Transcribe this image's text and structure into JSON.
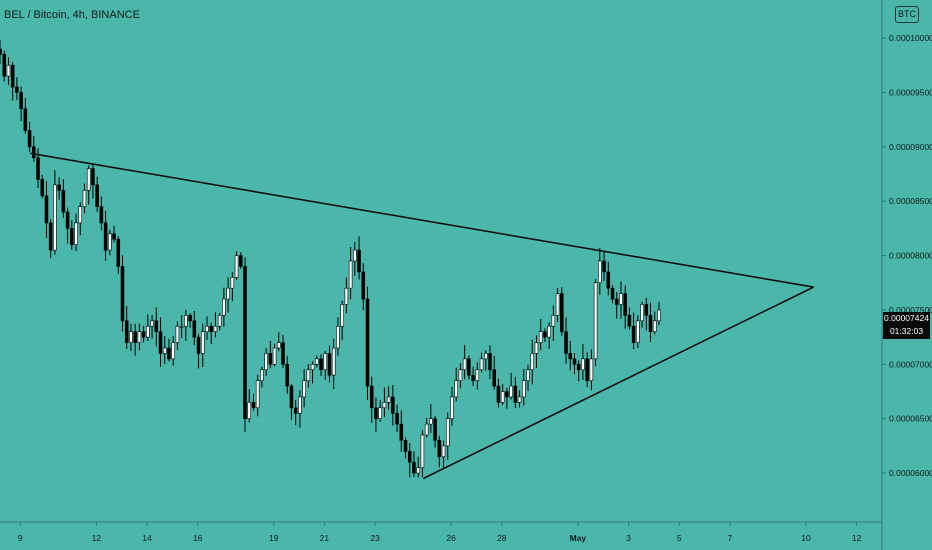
{
  "header": {
    "title": "BEL / Bitcoin, 4h, BINANCE"
  },
  "currency_button": {
    "label": "BTC"
  },
  "price_tag": {
    "value": "0.00007424",
    "countdown": "01:32:03"
  },
  "colors": {
    "background": "#4bb7aa",
    "candle_up": "#ffffff",
    "candle_down": "#000000",
    "trendline": "#111111",
    "axis_text": "#0f1b1a"
  },
  "chart_data": {
    "type": "candlestick",
    "title": "BEL / Bitcoin, 4h, BINANCE",
    "interval": "4h",
    "y_ticks": [
      "0.00010000",
      "0.00009500",
      "0.00009000",
      "0.00008500",
      "0.00008000",
      "0.00007500",
      "0.00007000",
      "0.00006500",
      "0.00006000"
    ],
    "ylim": [
      5.55e-05,
      0.0001035
    ],
    "x_ticks": [
      "9",
      "12",
      "14",
      "16",
      "19",
      "21",
      "23",
      "26",
      "28",
      "May",
      "3",
      "5",
      "7",
      "10",
      "12"
    ],
    "x_tick_days": [
      9,
      12,
      14,
      16,
      19,
      21,
      23,
      26,
      28,
      31,
      33,
      35,
      37,
      40,
      42
    ],
    "xlim": [
      8.2,
      43
    ],
    "x_start_day": 8.2,
    "bars_per_day": 6,
    "closes": [
      9.85,
      9.65,
      9.75,
      9.55,
      9.5,
      9.35,
      9.15,
      9.0,
      8.9,
      8.7,
      8.55,
      8.3,
      8.05,
      8.65,
      8.6,
      8.4,
      8.25,
      8.1,
      8.3,
      8.45,
      8.6,
      8.8,
      8.65,
      8.45,
      8.3,
      8.05,
      8.2,
      8.15,
      7.9,
      7.4,
      7.2,
      7.3,
      7.2,
      7.3,
      7.25,
      7.35,
      7.4,
      7.3,
      7.1,
      7.15,
      7.05,
      7.2,
      7.35,
      7.35,
      7.45,
      7.4,
      7.25,
      7.1,
      7.3,
      7.35,
      7.3,
      7.35,
      7.45,
      7.6,
      7.7,
      7.8,
      8.0,
      7.9,
      6.5,
      6.65,
      6.6,
      6.85,
      6.95,
      7.1,
      7.0,
      7.15,
      7.2,
      7.0,
      6.8,
      6.6,
      6.55,
      6.7,
      6.85,
      6.95,
      7.0,
      7.05,
      6.95,
      7.1,
      6.9,
      7.15,
      7.35,
      7.55,
      7.7,
      7.95,
      8.05,
      7.85,
      7.6,
      6.8,
      6.6,
      6.5,
      6.6,
      6.65,
      6.7,
      6.55,
      6.45,
      6.3,
      6.2,
      6.1,
      6.0,
      6.05,
      6.35,
      6.45,
      6.5,
      6.3,
      6.15,
      6.25,
      6.5,
      6.7,
      6.85,
      6.95,
      7.05,
      6.9,
      6.85,
      6.95,
      7.05,
      7.1,
      6.95,
      6.8,
      6.65,
      6.75,
      6.7,
      6.8,
      6.65,
      6.7,
      6.85,
      6.95,
      7.1,
      7.2,
      7.3,
      7.25,
      7.35,
      7.45,
      7.65,
      7.3,
      7.1,
      7.05,
      7.0,
      6.95,
      7.05,
      6.85,
      7.05,
      7.75,
      7.95,
      7.85,
      7.7,
      7.6,
      7.55,
      7.65,
      7.45,
      7.35,
      7.2,
      7.4,
      7.55,
      7.45,
      7.3,
      7.4,
      7.5
    ],
    "volatility": 0.12,
    "price_unit": 1e-05,
    "last_price": 7.424e-05,
    "trendlines": [
      {
        "name": "descending-resistance",
        "x1": 9.4,
        "y1": 8.94e-05,
        "x2": 40.3,
        "y2": 7.71e-05
      },
      {
        "name": "ascending-support",
        "x1": 24.9,
        "y1": 5.95e-05,
        "x2": 40.3,
        "y2": 7.71e-05
      }
    ]
  }
}
